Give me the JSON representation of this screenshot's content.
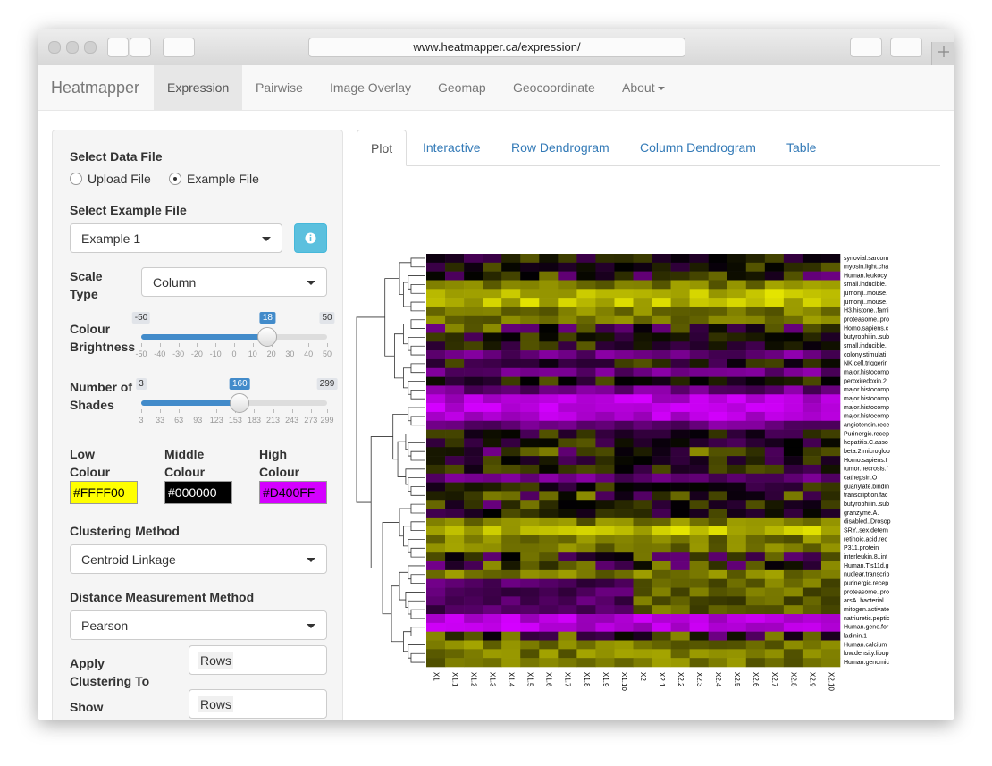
{
  "browser": {
    "url": "www.heatmapper.ca/expression/"
  },
  "nav": {
    "brand": "Heatmapper",
    "items": [
      "Expression",
      "Pairwise",
      "Image Overlay",
      "Geomap",
      "Geocoordinate",
      "About"
    ],
    "active": 0
  },
  "sidebar": {
    "data_file": {
      "label": "Select Data File",
      "options": [
        "Upload File",
        "Example File"
      ],
      "selected": 1
    },
    "example_file": {
      "label": "Select Example File",
      "value": "Example 1"
    },
    "scale_type": {
      "label": "Scale Type",
      "value": "Column"
    },
    "brightness": {
      "label": "Colour Brightness",
      "min": -50,
      "max": 50,
      "value": 18,
      "ticks": [
        -50,
        -40,
        -30,
        -20,
        -10,
        0,
        10,
        20,
        30,
        40,
        50
      ]
    },
    "shades": {
      "label": "Number of Shades",
      "min": 3,
      "max": 299,
      "value": 160,
      "ticks": [
        3,
        33,
        63,
        93,
        123,
        153,
        183,
        213,
        243,
        273,
        299
      ]
    },
    "colours": [
      {
        "label": "Low Colour",
        "value": "#FFFF00"
      },
      {
        "label": "Middle Colour",
        "value": "#000000"
      },
      {
        "label": "High Colour",
        "value": "#D400FF"
      }
    ],
    "clustering_method": {
      "label": "Clustering Method",
      "value": "Centroid Linkage"
    },
    "distance_method": {
      "label": "Distance Measurement Method",
      "value": "Pearson"
    },
    "apply_clustering": {
      "label": "Apply Clustering To",
      "value": "Rows"
    },
    "show_dendrogram": {
      "label": "Show Dendrogram",
      "value": "Rows"
    }
  },
  "tabs": {
    "items": [
      "Plot",
      "Interactive",
      "Row Dendrogram",
      "Column Dendrogram",
      "Table"
    ],
    "active": 0
  },
  "heatmap": {
    "row_labels": [
      "synovial.sarcom",
      "myosin.light.cha",
      "Human.leukocy",
      "small.inducible.",
      "jumonji..mouse.",
      "jumonji..mouse.",
      "H3.histone..fami",
      "proteasome..pro",
      "Homo.sapiens.c",
      "butyrophilin..sub",
      "small.inducible.",
      "colony.stimulati",
      "NK.cell.triggerin",
      "major.histocomp",
      "peroxiredoxin.2",
      "major.histocomp",
      "major.histocomp",
      "major.histocomp",
      "major.histocomp",
      "angiotensin.rece",
      "Purinergic.recep",
      "hepatitis.C.asso",
      "beta.2.microglob",
      "Homo.sapiens.I",
      "tumor.necrosis.f",
      "cathepsin.O",
      "guanylate.bindin",
      "transcription.fac",
      "butyrophilin..sub",
      "granzyme.A.",
      "disabled..Drosop",
      "SRY..sex.detern",
      "retinoic.acid.rec",
      "P311.protein",
      "interleukin.8..int",
      "Human.Tis11d.g",
      "nuclear.transcrip",
      "purinergic.recep",
      "proteasome..pro",
      "arsA..bacterial..",
      "mitogen.activate",
      "natriuretic.peptic",
      "Human.gene.for",
      "ladinin.1",
      "Human.calcium",
      "low.density.lipop",
      "Human.genomic"
    ],
    "column_labels": [
      "X1",
      "X1.1",
      "X1.2",
      "X1.3",
      "X1.4",
      "X1.5",
      "X1.6",
      "X1.7",
      "X1.8",
      "X1.9",
      "X1.10",
      "X2",
      "X2.1",
      "X2.2",
      "X2.3",
      "X2.4",
      "X2.5",
      "X2.6",
      "X2.7",
      "X2.8",
      "X2.9",
      "X2.10"
    ]
  }
}
